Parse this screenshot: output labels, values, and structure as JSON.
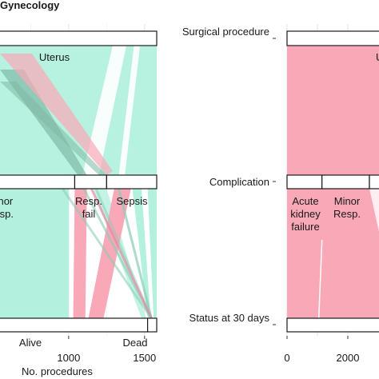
{
  "chart_data": [
    {
      "type": "alluvial",
      "title": "Gynecology",
      "xlabel": "No. procedures",
      "xlim": [
        0,
        1580
      ],
      "x_ticks": [
        "1000",
        "1500"
      ],
      "axes": [
        "Surgical procedure",
        "Complication",
        "Status at 30 days"
      ],
      "nodes": {
        "procedure": [
          {
            "label": "Uterus",
            "start": 0,
            "end": 1580
          }
        ],
        "complication": [
          {
            "label": "Minor\nResp.",
            "start": 0,
            "end": 1040
          },
          {
            "label": "Resp.\nfail",
            "start": 1040,
            "end": 1250
          },
          {
            "label": "Sepsis",
            "start": 1250,
            "end": 1580
          }
        ],
        "status": [
          {
            "label": "Alive",
            "start": 0,
            "end": 1520
          },
          {
            "label": "Dead",
            "start": 1520,
            "end": 1580
          }
        ]
      },
      "colors": {
        "survived": "#b3f0dd",
        "died": "#f9a8b8",
        "flow_dark": "#8fd9c2"
      }
    },
    {
      "type": "alluvial",
      "title": "",
      "xlabel": "",
      "xlim": [
        0,
        2600
      ],
      "x_ticks": [
        "0",
        "2000"
      ],
      "axes": [
        "Surgical procedure",
        "Complication",
        "Status at 30 days"
      ],
      "nodes": {
        "procedure": [
          {
            "label": "U",
            "start": 0,
            "end": 2600
          }
        ],
        "complication": [
          {
            "label": "Acute\nkidney\nfailure",
            "start": 0,
            "end": 1150
          },
          {
            "label": "Minor\nResp.",
            "start": 1150,
            "end": 2600
          }
        ]
      },
      "colors": {
        "flow": "#f9a8b8"
      }
    }
  ]
}
